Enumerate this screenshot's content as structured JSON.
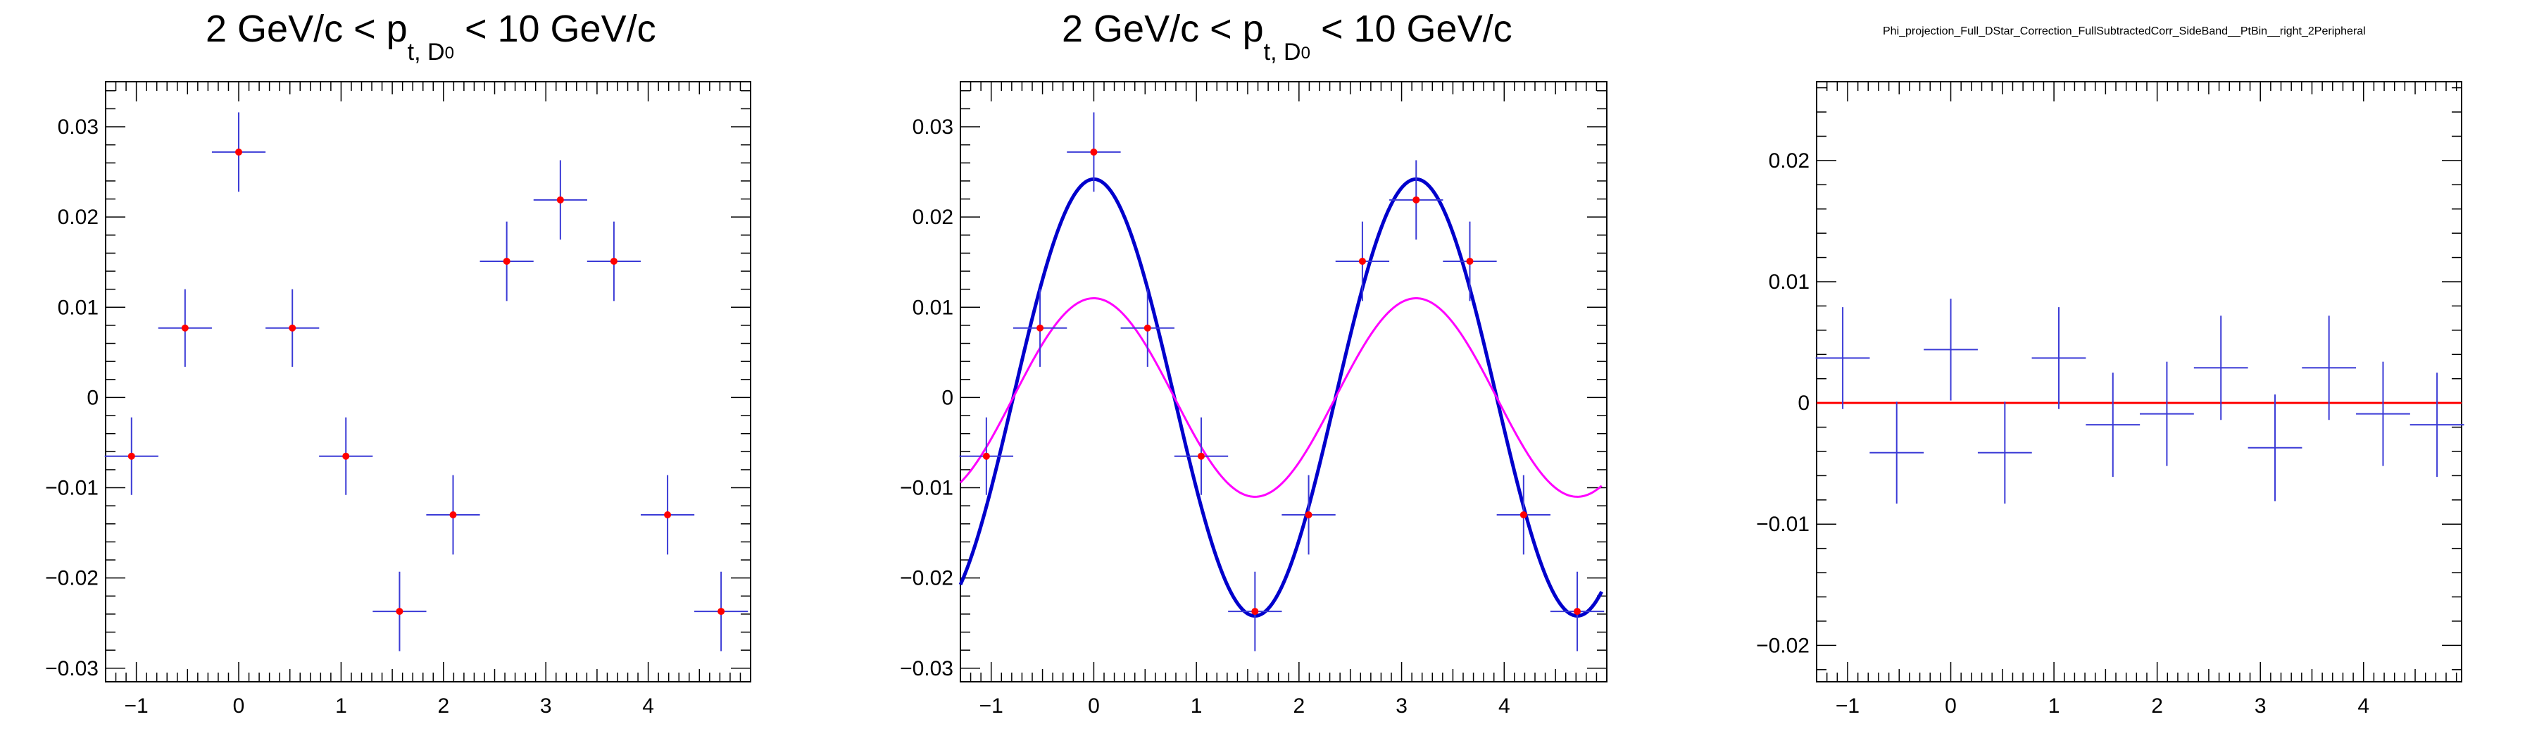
{
  "colors": {
    "frame": "#000000",
    "points": "#ff0000",
    "errorbars": "#3b3bd6",
    "fit_total": "#0000cc",
    "fit_component": "#ff00ff",
    "zero_line": "#ff0000"
  },
  "panels": [
    {
      "title": {
        "pre": "2 GeV/c < p",
        "sub": "t, D",
        "sup": "0",
        "post": " < 10 GeV/c"
      }
    },
    {
      "title": {
        "pre": "2 GeV/c < p",
        "sub": "t, D",
        "sup": "0",
        "post": " < 10 GeV/c"
      }
    },
    {
      "title": {
        "full": "Phi_projection_Full_DStar_Correction_FullSubtractedCorr_SideBand__PtBin__right_2Peripheral"
      }
    }
  ],
  "chart_data": [
    {
      "type": "scatter",
      "xlim": [
        -1.3,
        5.0
      ],
      "ylim": [
        -0.0315,
        0.035
      ],
      "xticks": [
        -1,
        0,
        1,
        2,
        3,
        4
      ],
      "xtick_labels": [
        "−1",
        "0",
        "1",
        "2",
        "3",
        "4"
      ],
      "yticks": [
        -0.03,
        -0.02,
        -0.01,
        0,
        0.01,
        0.02,
        0.03
      ],
      "ytick_labels": [
        "−0.03",
        "−0.02",
        "−0.01",
        "0",
        "0.01",
        "0.02",
        "0.03"
      ],
      "grid": false,
      "points": [
        {
          "x": -1.047,
          "y": -0.0065,
          "ex": 0.262,
          "ey": 0.0043
        },
        {
          "x": -0.524,
          "y": 0.0077,
          "ex": 0.262,
          "ey": 0.0043
        },
        {
          "x": 0.0,
          "y": 0.0272,
          "ex": 0.262,
          "ey": 0.0044
        },
        {
          "x": 0.524,
          "y": 0.0077,
          "ex": 0.262,
          "ey": 0.0043
        },
        {
          "x": 1.047,
          "y": -0.0065,
          "ex": 0.262,
          "ey": 0.0043
        },
        {
          "x": 1.571,
          "y": -0.0237,
          "ex": 0.262,
          "ey": 0.0044
        },
        {
          "x": 2.094,
          "y": -0.013,
          "ex": 0.262,
          "ey": 0.0044
        },
        {
          "x": 2.618,
          "y": 0.0151,
          "ex": 0.262,
          "ey": 0.0044
        },
        {
          "x": 3.142,
          "y": 0.0219,
          "ex": 0.262,
          "ey": 0.0044
        },
        {
          "x": 3.665,
          "y": 0.0151,
          "ex": 0.262,
          "ey": 0.0044
        },
        {
          "x": 4.189,
          "y": -0.013,
          "ex": 0.262,
          "ey": 0.0044
        },
        {
          "x": 4.712,
          "y": -0.0237,
          "ex": 0.262,
          "ey": 0.0044
        }
      ]
    },
    {
      "type": "scatter",
      "xlim": [
        -1.3,
        5.0
      ],
      "ylim": [
        -0.0315,
        0.035
      ],
      "xticks": [
        -1,
        0,
        1,
        2,
        3,
        4
      ],
      "xtick_labels": [
        "−1",
        "0",
        "1",
        "2",
        "3",
        "4"
      ],
      "yticks": [
        -0.03,
        -0.02,
        -0.01,
        0,
        0.01,
        0.02,
        0.03
      ],
      "ytick_labels": [
        "−0.03",
        "−0.02",
        "−0.01",
        "0",
        "0.01",
        "0.02",
        "0.03"
      ],
      "grid": false,
      "points": [
        {
          "x": -1.047,
          "y": -0.0065,
          "ex": 0.262,
          "ey": 0.0043
        },
        {
          "x": -0.524,
          "y": 0.0077,
          "ex": 0.262,
          "ey": 0.0043
        },
        {
          "x": 0.0,
          "y": 0.0272,
          "ex": 0.262,
          "ey": 0.0044
        },
        {
          "x": 0.524,
          "y": 0.0077,
          "ex": 0.262,
          "ey": 0.0043
        },
        {
          "x": 1.047,
          "y": -0.0065,
          "ex": 0.262,
          "ey": 0.0043
        },
        {
          "x": 1.571,
          "y": -0.0237,
          "ex": 0.262,
          "ey": 0.0044
        },
        {
          "x": 2.094,
          "y": -0.013,
          "ex": 0.262,
          "ey": 0.0044
        },
        {
          "x": 2.618,
          "y": 0.0151,
          "ex": 0.262,
          "ey": 0.0044
        },
        {
          "x": 3.142,
          "y": 0.0219,
          "ex": 0.262,
          "ey": 0.0044
        },
        {
          "x": 3.665,
          "y": 0.0151,
          "ex": 0.262,
          "ey": 0.0044
        },
        {
          "x": 4.189,
          "y": -0.013,
          "ex": 0.262,
          "ey": 0.0044
        },
        {
          "x": 4.712,
          "y": -0.0237,
          "ex": 0.262,
          "ey": 0.0044
        }
      ],
      "curves": [
        {
          "kind": "cos2",
          "offset": 0.0,
          "amplitude": 0.0242,
          "x_range": [
            -1.3,
            4.95
          ],
          "color_key": "fit_total"
        },
        {
          "kind": "cos2",
          "offset": 0.0,
          "amplitude": 0.011,
          "x_range": [
            -1.3,
            4.95
          ],
          "color_key": "fit_component"
        }
      ]
    },
    {
      "type": "scatter",
      "xlim": [
        -1.3,
        4.95
      ],
      "ylim": [
        -0.023,
        0.0265
      ],
      "xticks": [
        -1,
        0,
        1,
        2,
        3,
        4
      ],
      "xtick_labels": [
        "−1",
        "0",
        "1",
        "2",
        "3",
        "4"
      ],
      "yticks": [
        -0.02,
        -0.01,
        0,
        0.01,
        0.02
      ],
      "ytick_labels": [
        "−0.02",
        "−0.01",
        "0",
        "0.01",
        "0.02"
      ],
      "grid": false,
      "points": [
        {
          "x": -1.047,
          "y": 0.0037,
          "ex": 0.262,
          "ey": 0.0042
        },
        {
          "x": -0.524,
          "y": -0.0041,
          "ex": 0.262,
          "ey": 0.0042
        },
        {
          "x": 0.0,
          "y": 0.0044,
          "ex": 0.262,
          "ey": 0.0042
        },
        {
          "x": 0.524,
          "y": -0.0041,
          "ex": 0.262,
          "ey": 0.0042
        },
        {
          "x": 1.047,
          "y": 0.0037,
          "ex": 0.262,
          "ey": 0.0042
        },
        {
          "x": 1.571,
          "y": -0.0018,
          "ex": 0.262,
          "ey": 0.0043
        },
        {
          "x": 2.094,
          "y": -0.0009,
          "ex": 0.262,
          "ey": 0.0043
        },
        {
          "x": 2.618,
          "y": 0.0029,
          "ex": 0.262,
          "ey": 0.0043
        },
        {
          "x": 3.142,
          "y": -0.0037,
          "ex": 0.262,
          "ey": 0.0044
        },
        {
          "x": 3.665,
          "y": 0.0029,
          "ex": 0.262,
          "ey": 0.0043
        },
        {
          "x": 4.189,
          "y": -0.0009,
          "ex": 0.262,
          "ey": 0.0043
        },
        {
          "x": 4.712,
          "y": -0.0018,
          "ex": 0.262,
          "ey": 0.0043
        }
      ],
      "reference_line": {
        "y": 0,
        "color_key": "zero_line"
      }
    }
  ]
}
